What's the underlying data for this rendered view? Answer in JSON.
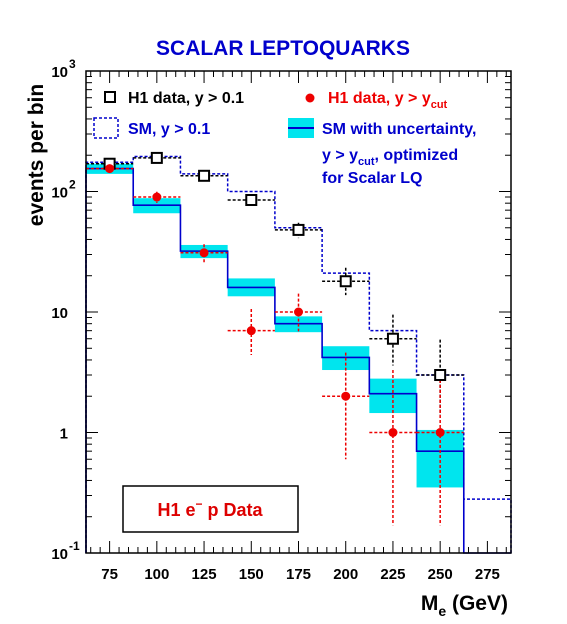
{
  "chart_data": {
    "type": "histogram",
    "title": "SCALAR LEPTOQUARKS",
    "ylabel": "events per bin",
    "xlabel_main": "M",
    "xlabel_sub": "e",
    "xlabel_unit": "(GeV)",
    "y_scale": "log",
    "xlim": [
      62.5,
      287.5
    ],
    "ylim": [
      0.1,
      1000
    ],
    "x_ticks": [
      "75",
      "100",
      "125",
      "150",
      "175",
      "200",
      "225",
      "250",
      "275"
    ],
    "y_ticks": [
      {
        "base": "10",
        "exp": "-1"
      },
      {
        "base": "1",
        "exp": ""
      },
      {
        "base": "10",
        "exp": ""
      },
      {
        "base": "10",
        "exp": "2"
      },
      {
        "base": "10",
        "exp": "3"
      }
    ],
    "bin_edges": [
      62.5,
      87.5,
      112.5,
      137.5,
      162.5,
      187.5,
      212.5,
      237.5,
      262.5,
      287.5
    ],
    "series": [
      {
        "name": "H1 data, y > 0.1",
        "kind": "points-open-square",
        "color": "#000000",
        "x": [
          75,
          100,
          125,
          150,
          175,
          200,
          225,
          250
        ],
        "y": [
          170,
          190,
          135,
          85,
          48,
          18,
          6,
          3
        ],
        "yerr_low": [
          13,
          14,
          12,
          9,
          7,
          4.2,
          2.4,
          1.6
        ],
        "yerr_high": [
          13,
          14,
          12,
          9,
          7,
          5.3,
          3.5,
          2.9
        ]
      },
      {
        "name": "SM, y > 0.1",
        "kind": "step-dashed",
        "color": "#0000cc",
        "values": [
          175,
          195,
          140,
          100,
          50,
          21,
          7,
          3,
          0.28
        ]
      },
      {
        "name": "H1 data, y > y_cut",
        "kind": "points-filled-circle",
        "color": "#ee0000",
        "x": [
          75,
          100,
          125,
          150,
          175,
          200,
          225,
          250
        ],
        "y": [
          155,
          90,
          31,
          7,
          10,
          2,
          1,
          1
        ],
        "yerr_low": [
          12,
          9.5,
          5.5,
          2.6,
          3.1,
          1.4,
          0.83,
          0.83
        ],
        "yerr_high": [
          12,
          9.5,
          5.5,
          3.6,
          4.2,
          2.6,
          2.3,
          2.3
        ]
      },
      {
        "name": "SM with uncertainty, y > y_cut , optimized for Scalar LQ",
        "kind": "step-band",
        "color": "#0000cc",
        "band_color": "#00e5ee",
        "values": [
          155,
          77,
          32,
          16,
          8,
          4.2,
          2.1,
          0.7,
          0.05
        ],
        "band_low": [
          140,
          66,
          28,
          13.5,
          6.8,
          3.3,
          1.45,
          0.35,
          0.05
        ],
        "band_high": [
          170,
          88,
          36,
          19,
          9.2,
          5.2,
          2.8,
          1.05,
          0.05
        ]
      }
    ],
    "legend": {
      "position": "top",
      "items": [
        {
          "label": "H1 data, y > 0.1"
        },
        {
          "label_main": "H1 data, y > y",
          "label_sub": "cut"
        },
        {
          "label": "SM, y > 0.1"
        },
        {
          "line1": "SM with uncertainty,",
          "line2_main": "y > y",
          "line2_sub": "cut",
          "line2_rest": ", optimized",
          "line3": "for Scalar LQ"
        }
      ]
    },
    "annotation": {
      "main": "H1 e",
      "sup": "−",
      "rest": " p Data",
      "color": "#dd0000"
    }
  }
}
